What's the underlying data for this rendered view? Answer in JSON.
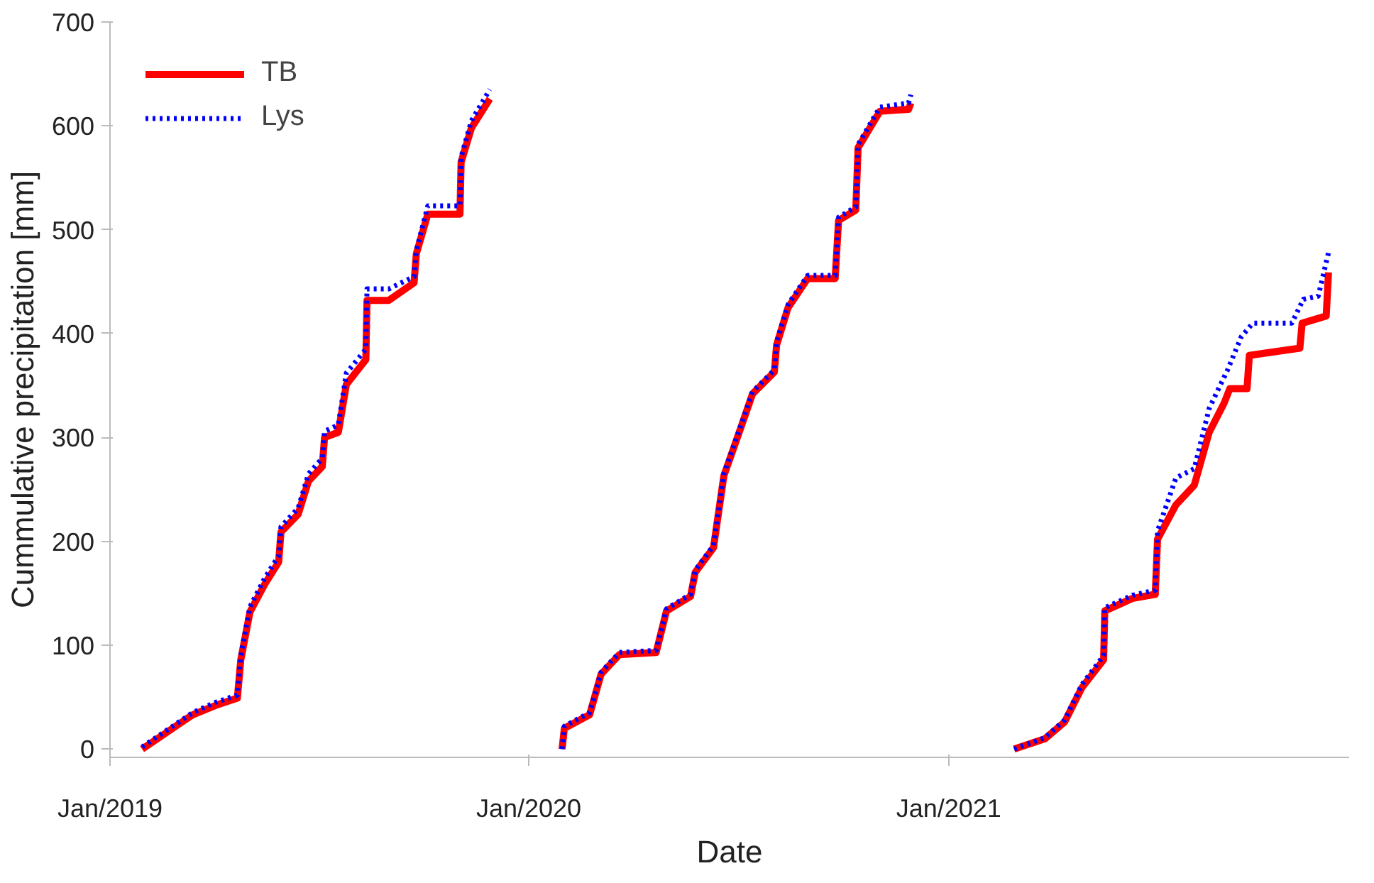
{
  "chart_data": {
    "type": "line",
    "xlabel": "Date",
    "ylabel": "Cummulative precipitation [mm]",
    "xlim": [
      "2019-01-01",
      "2021-12-16"
    ],
    "xticks": [
      {
        "value": "2019-01-01",
        "label": "Jan/2019"
      },
      {
        "value": "2020-01-01",
        "label": "Jan/2020"
      },
      {
        "value": "2021-01-01",
        "label": "Jan/2021"
      }
    ],
    "ylim": [
      -8,
      700
    ],
    "yticks": [
      0,
      100,
      200,
      300,
      400,
      500,
      600,
      700
    ],
    "grid": false,
    "legend": "top left",
    "marker": "none",
    "series": [
      {
        "name": "TB",
        "color": "#ff0000",
        "line_style": "solid",
        "x": [
          "2019-01-29",
          "2019-03-14",
          "2019-04-03",
          "2019-04-22",
          "2019-04-25",
          "2019-05-03",
          "2019-05-16",
          "2019-05-28",
          "2019-05-30",
          "2019-06-14",
          "2019-06-23",
          "2019-07-05",
          "2019-07-07",
          "2019-07-19",
          "2019-07-26",
          "2019-08-12",
          "2019-08-13",
          "2019-09-01",
          "2019-09-23",
          "2019-09-25",
          "2019-10-05",
          "2019-11-02",
          "2019-11-03",
          "2019-11-12",
          "2019-11-28",
          null,
          "2020-01-30",
          "2020-02-01",
          "2020-02-23",
          "2020-03-04",
          "2020-03-20",
          "2020-04-21",
          "2020-04-30",
          "2020-05-21",
          "2020-05-25",
          "2020-06-10",
          "2020-06-19",
          "2020-07-04",
          "2020-07-14",
          "2020-08-02",
          "2020-08-04",
          "2020-08-14",
          "2020-08-31",
          "2020-09-24",
          "2020-09-27",
          "2020-10-12",
          "2020-10-14",
          "2020-11-02",
          "2020-11-27",
          "2020-11-29",
          null,
          "2021-02-27",
          "2021-03-26",
          "2021-04-12",
          "2021-04-27",
          "2021-05-16",
          "2021-05-17",
          "2021-06-10",
          "2021-06-30",
          "2021-07-02",
          "2021-07-18",
          "2021-08-03",
          "2021-08-16",
          "2021-08-29",
          "2021-09-03",
          "2021-09-18",
          "2021-09-20",
          "2021-11-03",
          "2021-11-05",
          "2021-11-26",
          "2021-11-28"
        ],
        "values": [
          0,
          33,
          42,
          49,
          86,
          132,
          159,
          180,
          209,
          226,
          258,
          272,
          300,
          305,
          351,
          375,
          432,
          432,
          449,
          477,
          515,
          515,
          565,
          598,
          626,
          null,
          0,
          20,
          33,
          72,
          91,
          93,
          133,
          147,
          170,
          194,
          263,
          310,
          342,
          363,
          389,
          425,
          453,
          453,
          509,
          519,
          579,
          614,
          616,
          622,
          null,
          0,
          10,
          26,
          59,
          86,
          133,
          145,
          149,
          202,
          235,
          254,
          305,
          333,
          347,
          347,
          379,
          386,
          410,
          417,
          459
        ]
      },
      {
        "name": "Lys",
        "color": "#0000ff",
        "line_style": "dotted",
        "x": [
          "2019-01-29",
          "2019-03-14",
          "2019-04-03",
          "2019-04-22",
          "2019-04-25",
          "2019-05-03",
          "2019-05-16",
          "2019-05-28",
          "2019-05-30",
          "2019-06-14",
          "2019-06-23",
          "2019-07-05",
          "2019-07-07",
          "2019-07-19",
          "2019-07-26",
          "2019-08-12",
          "2019-08-13",
          "2019-09-01",
          "2019-09-23",
          "2019-09-25",
          "2019-10-05",
          "2019-11-02",
          "2019-11-03",
          "2019-11-12",
          "2019-11-28",
          null,
          "2020-01-30",
          "2020-02-01",
          "2020-02-23",
          "2020-03-04",
          "2020-03-20",
          "2020-04-21",
          "2020-04-30",
          "2020-05-21",
          "2020-05-25",
          "2020-06-10",
          "2020-06-19",
          "2020-07-04",
          "2020-07-14",
          "2020-08-02",
          "2020-08-04",
          "2020-08-14",
          "2020-08-31",
          "2020-09-24",
          "2020-09-27",
          "2020-10-12",
          "2020-10-14",
          "2020-11-02",
          "2020-11-27",
          "2020-11-29",
          null,
          "2021-02-27",
          "2021-03-26",
          "2021-04-12",
          "2021-04-27",
          "2021-05-16",
          "2021-05-17",
          "2021-06-10",
          "2021-06-30",
          "2021-07-02",
          "2021-07-18",
          "2021-08-03",
          "2021-08-16",
          "2021-09-01",
          "2021-09-13",
          "2021-09-23",
          "2021-10-27",
          "2021-11-06",
          "2021-11-19",
          "2021-11-28"
        ],
        "values": [
          2,
          35,
          45,
          52,
          90,
          137,
          165,
          186,
          214,
          232,
          265,
          280,
          306,
          312,
          362,
          385,
          443,
          443,
          455,
          480,
          523,
          523,
          570,
          605,
          635,
          null,
          0,
          22,
          35,
          74,
          93,
          95,
          135,
          149,
          172,
          196,
          265,
          312,
          344,
          365,
          392,
          428,
          456,
          456,
          512,
          522,
          582,
          618,
          622,
          630,
          null,
          0,
          11,
          28,
          62,
          90,
          136,
          148,
          153,
          210,
          261,
          270,
          328,
          365,
          397,
          410,
          410,
          433,
          436,
          478
        ]
      }
    ]
  }
}
